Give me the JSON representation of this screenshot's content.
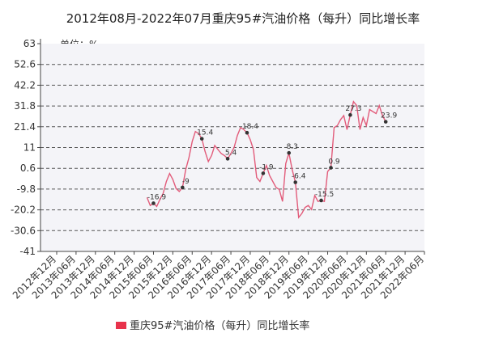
{
  "chart_data": {
    "type": "line",
    "title": "2012年08月-2022年07月重庆95#汽油价格（每升）同比增长率",
    "unit_label": "单位：%",
    "ylim": [
      -41,
      63
    ],
    "yticks": [
      "63",
      "52.6",
      "42.2",
      "31.8",
      "21.4",
      "11",
      "0.6",
      "-9.8",
      "-20.2",
      "-30.6",
      "-41"
    ],
    "xticks": [
      "2012年12月",
      "2013年06月",
      "2013年12月",
      "2014年06月",
      "2014年12月",
      "2015年06月",
      "2015年12月",
      "2016年06月",
      "2016年12月",
      "2017年06月",
      "2017年12月",
      "2018年06月",
      "2018年12月",
      "2019年06月",
      "2019年12月",
      "2020年06月",
      "2020年12月",
      "2021年06月",
      "2021年12月",
      "2022年06月"
    ],
    "grid": true,
    "legend_position": "bottom",
    "series": [
      {
        "name": "重庆95#汽油价格（每升）同比增长率",
        "color": "#e25b7a",
        "points": [
          [
            "2015-04",
            -14
          ],
          [
            "2015-05",
            -18
          ],
          [
            "2015-06",
            -16.9
          ],
          [
            "2015-07",
            -18.5
          ],
          [
            "2015-08",
            -15
          ],
          [
            "2015-09",
            -12
          ],
          [
            "2015-10",
            -6
          ],
          [
            "2015-11",
            -2
          ],
          [
            "2015-12",
            -5
          ],
          [
            "2016-01",
            -9.5
          ],
          [
            "2016-02",
            -11
          ],
          [
            "2016-03",
            -9
          ],
          [
            "2016-04",
            0
          ],
          [
            "2016-05",
            6
          ],
          [
            "2016-06",
            14
          ],
          [
            "2016-07",
            19
          ],
          [
            "2016-08",
            18
          ],
          [
            "2016-09",
            15.4
          ],
          [
            "2016-10",
            9
          ],
          [
            "2016-11",
            4
          ],
          [
            "2016-12",
            7
          ],
          [
            "2017-01",
            12
          ],
          [
            "2017-02",
            10
          ],
          [
            "2017-03",
            8
          ],
          [
            "2017-04",
            7
          ],
          [
            "2017-05",
            5.4
          ],
          [
            "2017-06",
            8
          ],
          [
            "2017-07",
            11
          ],
          [
            "2017-08",
            17
          ],
          [
            "2017-09",
            21
          ],
          [
            "2017-10",
            20
          ],
          [
            "2017-11",
            18.4
          ],
          [
            "2017-12",
            15
          ],
          [
            "2018-01",
            10
          ],
          [
            "2018-02",
            -4
          ],
          [
            "2018-03",
            -6
          ],
          [
            "2018-04",
            -1.9
          ],
          [
            "2018-05",
            2
          ],
          [
            "2018-06",
            -3
          ],
          [
            "2018-07",
            -6
          ],
          [
            "2018-08",
            -9
          ],
          [
            "2018-09",
            -10
          ],
          [
            "2018-10",
            -16
          ],
          [
            "2018-11",
            3
          ],
          [
            "2018-12",
            8.3
          ],
          [
            "2019-01",
            0
          ],
          [
            "2019-02",
            -6.4
          ],
          [
            "2019-03",
            -24
          ],
          [
            "2019-04",
            -22
          ],
          [
            "2019-05",
            -19
          ],
          [
            "2019-06",
            -18
          ],
          [
            "2019-07",
            -20
          ],
          [
            "2019-08",
            -13
          ],
          [
            "2019-09",
            -16
          ],
          [
            "2019-10",
            -15.5
          ],
          [
            "2019-11",
            -16
          ],
          [
            "2019-12",
            -1
          ],
          [
            "2020-01",
            0.9
          ],
          [
            "2020-02",
            21
          ],
          [
            "2020-03",
            22
          ],
          [
            "2020-04",
            25
          ],
          [
            "2020-05",
            27
          ],
          [
            "2020-06",
            20
          ],
          [
            "2020-07",
            27.3
          ],
          [
            "2020-08",
            34
          ],
          [
            "2020-09",
            32
          ],
          [
            "2020-10",
            20
          ],
          [
            "2020-11",
            26
          ],
          [
            "2020-12",
            22
          ],
          [
            "2021-01",
            30
          ],
          [
            "2021-02",
            29
          ],
          [
            "2021-03",
            28
          ],
          [
            "2021-04",
            32
          ],
          [
            "2021-05",
            27
          ],
          [
            "2021-06",
            23.9
          ]
        ],
        "labels": [
          {
            "date": "2015-06",
            "value": -16.9,
            "text": "-16.9"
          },
          {
            "date": "2016-03",
            "value": -9,
            "text": "-9"
          },
          {
            "date": "2016-09",
            "value": 15.4,
            "text": "15.4"
          },
          {
            "date": "2017-05",
            "value": 5.4,
            "text": "5.4"
          },
          {
            "date": "2017-11",
            "value": 18.4,
            "text": "18.4"
          },
          {
            "date": "2018-04",
            "value": -1.9,
            "text": "-1.9"
          },
          {
            "date": "2018-12",
            "value": 8.3,
            "text": "8.3"
          },
          {
            "date": "2019-02",
            "value": -6.4,
            "text": "-6.4"
          },
          {
            "date": "2019-10",
            "value": -15.5,
            "text": "-15.5"
          },
          {
            "date": "2020-01",
            "value": 0.9,
            "text": "0.9"
          },
          {
            "date": "2020-07",
            "value": 27.3,
            "text": "27.3"
          },
          {
            "date": "2021-06",
            "value": 23.9,
            "text": "23.9"
          }
        ]
      }
    ]
  }
}
